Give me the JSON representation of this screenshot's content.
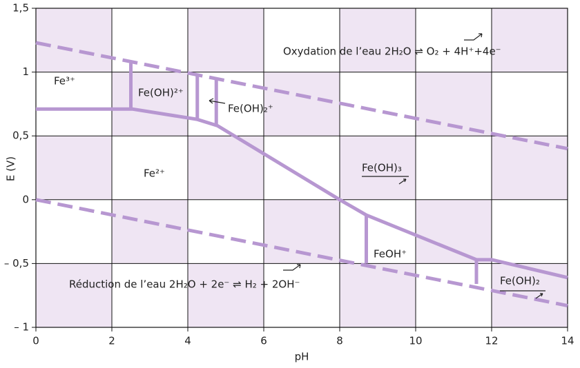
{
  "chart_data": {
    "type": "line",
    "xlabel": "pH",
    "ylabel": "E (V)",
    "xlim": [
      0,
      14
    ],
    "ylim": [
      -1,
      1.5
    ],
    "xticks": [
      0,
      2,
      4,
      6,
      8,
      10,
      12,
      14
    ],
    "yticks": [
      {
        "value": 1.5,
        "label": "1,5"
      },
      1,
      {
        "value": 0.5,
        "label": "0,5"
      },
      0,
      {
        "value": -0.5,
        "label": "– 0,5"
      },
      {
        "value": -1,
        "label": "– 1"
      }
    ],
    "grid": true,
    "color": "#b797d1",
    "series": [
      {
        "dashed": true,
        "x": [
          0,
          14
        ],
        "values": [
          1.23,
          0.4
        ]
      },
      {
        "dashed": true,
        "x": [
          0,
          14
        ],
        "values": [
          0,
          -0.83
        ]
      },
      {
        "dashed": false,
        "x": [
          0,
          2.55,
          4.24,
          4.78,
          8,
          8.7,
          11.6,
          12,
          14
        ],
        "values": [
          0.71,
          0.71,
          0.63,
          0.58,
          0,
          -0.12,
          -0.47,
          -0.47,
          -0.61
        ]
      },
      {
        "dashed": false,
        "x": [
          2.5,
          2.5
        ],
        "values": [
          0.71,
          1.07
        ]
      },
      {
        "dashed": false,
        "x": [
          4.25,
          4.25
        ],
        "values": [
          0.63,
          0.99
        ]
      },
      {
        "dashed": false,
        "x": [
          4.75,
          4.75
        ],
        "values": [
          0.58,
          0.95
        ]
      },
      {
        "dashed": false,
        "x": [
          8.7,
          8.7
        ],
        "values": [
          -0.12,
          -0.5
        ]
      },
      {
        "dashed": false,
        "x": [
          11.6,
          11.6
        ],
        "values": [
          -0.47,
          -0.66
        ]
      }
    ],
    "annotations": [
      "Oxydation de l’eau 2H₂O ⇌ O₂ + 4H⁺+4e⁻",
      "Réduction de l’eau 2H₂O + 2e⁻ ⇌ H₂ + 2OH⁻",
      "Fe³⁺",
      "Fe(OH)²⁺",
      "Fe(OH)₂⁺",
      "Fe²⁺",
      "Fe(OH)₃",
      "FeOH⁺",
      "Fe(OH)₂"
    ]
  }
}
